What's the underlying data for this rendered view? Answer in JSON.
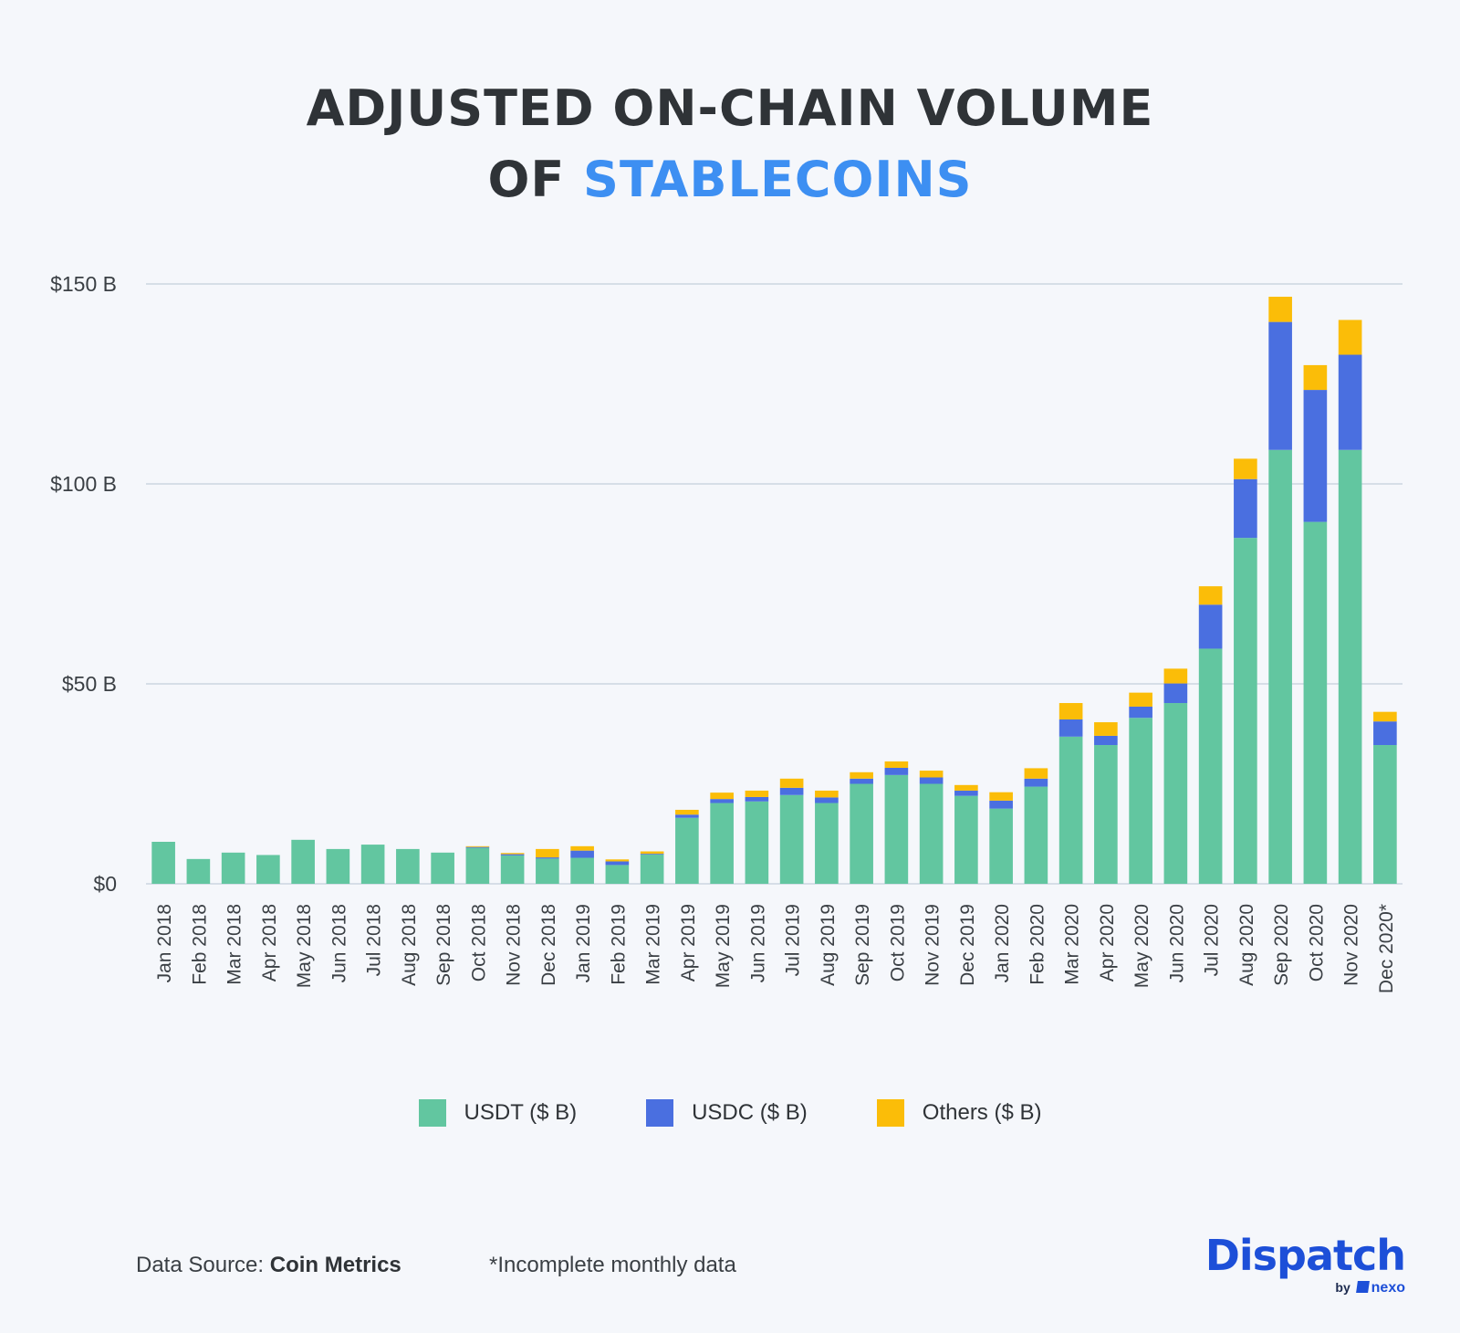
{
  "title": {
    "line1": "ADJUSTED ON-CHAIN VOLUME",
    "line2_prefix": "OF ",
    "line2_accent": "STABLECOINS"
  },
  "colors": {
    "usdt": "#62c6a0",
    "usdc": "#4a6fe0",
    "others": "#fbbd08",
    "grid": "#b7c6d3",
    "accent": "#3d8ff2",
    "brand": "#1d4fd8"
  },
  "legend": [
    {
      "label": "USDT ($ B)",
      "color_key": "usdt"
    },
    {
      "label": "USDC ($ B)",
      "color_key": "usdc"
    },
    {
      "label": "Others ($ B)",
      "color_key": "others"
    }
  ],
  "footer": {
    "source_prefix": "Data Source: ",
    "source_name": "Coin Metrics",
    "note": "*Incomplete monthly data"
  },
  "brand": {
    "name": "Dispatch",
    "by": "by",
    "partner": "nexo"
  },
  "chart_data": {
    "type": "bar",
    "stacked": true,
    "title": "ADJUSTED ON-CHAIN VOLUME OF STABLECOINS",
    "ylim": [
      0,
      150
    ],
    "yticks": [
      0,
      50,
      100,
      150
    ],
    "ytick_labels": [
      "$0",
      "$50 B",
      "$100 B",
      "$150 B"
    ],
    "grid": true,
    "legend_position": "bottom",
    "categories": [
      "Jan 2018",
      "Feb 2018",
      "Mar 2018",
      "Apr 2018",
      "May 2018",
      "Jun 2018",
      "Jul 2018",
      "Aug 2018",
      "Sep 2018",
      "Oct 2018",
      "Nov 2018",
      "Dec 2018",
      "Jan 2019",
      "Feb 2019",
      "Mar 2019",
      "Apr 2019",
      "May 2019",
      "Jun 2019",
      "Jul 2019",
      "Aug 2019",
      "Sep 2019",
      "Oct 2019",
      "Nov 2019",
      "Dec 2019",
      "Jan 2020",
      "Feb 2020",
      "Mar 2020",
      "Apr 2020",
      "May 2020",
      "Jun 2020",
      "Jul 2020",
      "Aug 2020",
      "Sep 2020",
      "Oct 2020",
      "Nov 2020",
      "Dec 2020*"
    ],
    "series": [
      {
        "name": "USDT ($ B)",
        "color_key": "usdt",
        "values": [
          10.5,
          6.2,
          7.8,
          7.2,
          11.0,
          8.7,
          9.8,
          8.7,
          7.8,
          9.0,
          7.1,
          6.3,
          6.5,
          4.7,
          7.3,
          16.5,
          20.2,
          20.6,
          22.2,
          20.2,
          25.0,
          27.2,
          25.0,
          22.0,
          18.8,
          24.3,
          36.8,
          34.7,
          41.5,
          45.2,
          58.8,
          86.5,
          108.5,
          90.5,
          108.5,
          34.7
        ]
      },
      {
        "name": "USDC ($ B)",
        "color_key": "usdc",
        "values": [
          0,
          0,
          0,
          0,
          0,
          0,
          0,
          0,
          0,
          0.2,
          0.3,
          0.3,
          1.8,
          0.9,
          0.2,
          0.8,
          1.0,
          1.1,
          1.8,
          1.4,
          1.3,
          1.8,
          1.6,
          1.3,
          2.0,
          2.0,
          4.3,
          2.3,
          2.8,
          4.9,
          11.0,
          14.7,
          32.0,
          33.0,
          23.8,
          5.9
        ]
      },
      {
        "name": "Others ($ B)",
        "color_key": "others",
        "values": [
          0,
          0,
          0,
          0,
          0,
          0,
          0,
          0,
          0,
          0.2,
          0.3,
          2.1,
          1.1,
          0.5,
          0.6,
          1.2,
          1.6,
          1.6,
          2.3,
          1.7,
          1.6,
          1.6,
          1.7,
          1.4,
          2.1,
          2.6,
          4.1,
          3.4,
          3.5,
          3.7,
          4.6,
          5.1,
          6.3,
          6.2,
          8.7,
          2.4
        ]
      }
    ]
  }
}
